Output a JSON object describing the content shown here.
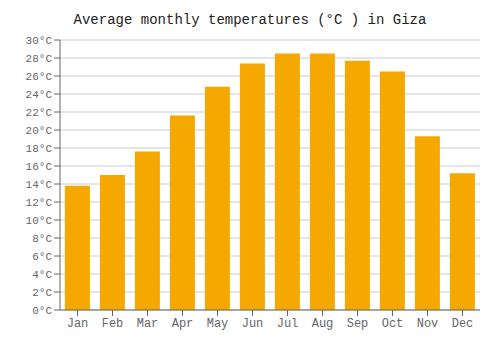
{
  "chart_data": {
    "type": "bar",
    "title": "Average monthly temperatures (°C ) in Giza",
    "categories": [
      "Jan",
      "Feb",
      "Mar",
      "Apr",
      "May",
      "Jun",
      "Jul",
      "Aug",
      "Sep",
      "Oct",
      "Nov",
      "Dec"
    ],
    "values": [
      13.8,
      15.0,
      17.6,
      21.6,
      24.8,
      27.4,
      28.5,
      28.5,
      27.7,
      26.5,
      19.3,
      15.2
    ],
    "color": "#F5A800",
    "ylim": [
      0,
      30
    ],
    "yticks": [
      {
        "value": 0,
        "label": "0°C"
      },
      {
        "value": 2,
        "label": "2°C"
      },
      {
        "value": 4,
        "label": "4°C"
      },
      {
        "value": 6,
        "label": "6°C"
      },
      {
        "value": 8,
        "label": "8°C"
      },
      {
        "value": 10,
        "label": "10°C"
      },
      {
        "value": 12,
        "label": "12°C"
      },
      {
        "value": 14,
        "label": "14°C"
      },
      {
        "value": 16,
        "label": "16°C"
      },
      {
        "value": 18,
        "label": "18°C"
      },
      {
        "value": 20,
        "label": "20°C"
      },
      {
        "value": 22,
        "label": "22°C"
      },
      {
        "value": 24,
        "label": "24°C"
      },
      {
        "value": 26,
        "label": "26°C"
      },
      {
        "value": 28,
        "label": "28°C"
      },
      {
        "value": 30,
        "label": "30°C"
      }
    ],
    "grid": true
  }
}
